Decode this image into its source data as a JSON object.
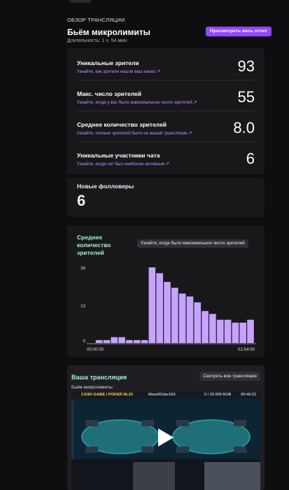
{
  "header": {
    "overline": "ОБЗОР ТРАНСЛЯЦИИ",
    "title": "Бьём микролимиты",
    "duration": "Длительность: 1 ч. 54 мин.",
    "report_button": "Просмотреть весь отчет"
  },
  "stats": [
    {
      "label": "Уникальные зрители",
      "link": "Узнайте, как зрители нашли ваш канал",
      "value": "93"
    },
    {
      "label": "Макс. число зрителей",
      "link": "Узнайте, когда у вас было максимальное число зрителей",
      "value": "55"
    },
    {
      "label": "Среднее количество зрителей",
      "link": "Узнайте, сколько зрителей было на вашей трансляции",
      "value": "8.0"
    },
    {
      "label": "Уникальные участники чата",
      "link": "Узнайте, когда чат был наиболее активным",
      "value": "6"
    }
  ],
  "followers": {
    "label": "Новые фолловеры",
    "value": "6"
  },
  "chart_data": {
    "type": "bar",
    "title": "Среднее количество зрителей",
    "chip": "Узнайте, когда было максимальное число зрителей",
    "y_ticks": [
      "26",
      "13",
      "0"
    ],
    "x_tick_labels": [
      "00:00:00",
      "01:54:00"
    ],
    "ylim": [
      0,
      26
    ],
    "values": [
      0,
      1,
      1,
      2,
      2,
      1,
      1,
      1,
      26,
      24,
      21,
      19,
      17,
      16,
      14,
      11,
      10,
      8,
      8,
      7,
      7,
      8
    ],
    "grid": false,
    "color": "#c5a3ff"
  },
  "stream": {
    "title": "Ваша трансляция",
    "subtitle": "Бьём микролимиты",
    "watch_button": "Смотреть всю трансляцию",
    "video": {
      "bar_left": "CASH GAME I POKER NL20",
      "bar_mid": "MoonR1der163",
      "bar_mid2": "0 / 20 000 RUB",
      "bar_time": "00:49:22",
      "count": "20"
    }
  },
  "colors": {
    "accent": "#9147ff",
    "link": "#bf94ff",
    "highlight": "#a6f2cd"
  }
}
